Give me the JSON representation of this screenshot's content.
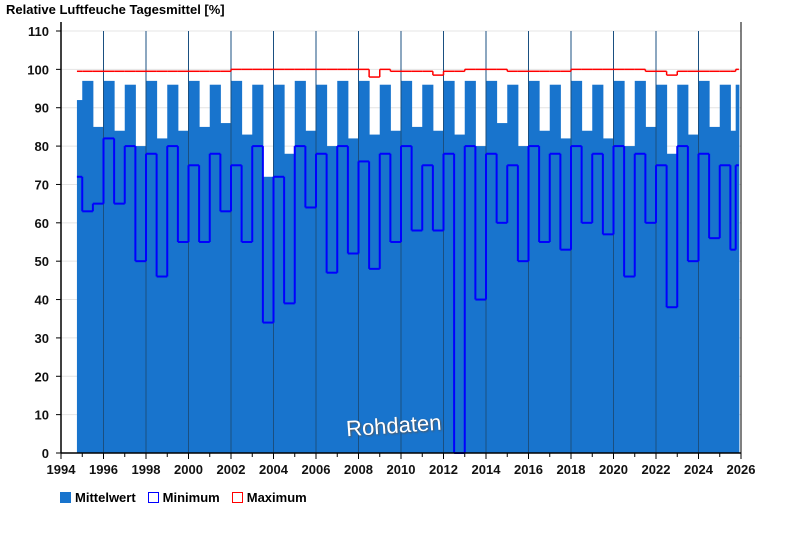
{
  "chart_data": {
    "type": "area",
    "title": "Relative Luftfeuche Tagesmittel [%]",
    "xlabel": "",
    "ylabel": "",
    "xlim": [
      1994,
      2026
    ],
    "ylim": [
      0,
      110
    ],
    "x_ticks": [
      "1994",
      "1996",
      "1998",
      "2000",
      "2002",
      "2004",
      "2006",
      "2008",
      "2010",
      "2012",
      "2014",
      "2016",
      "2018",
      "2020",
      "2022",
      "2024",
      "2026"
    ],
    "y_ticks": [
      "0",
      "10",
      "20",
      "30",
      "40",
      "50",
      "60",
      "70",
      "80",
      "90",
      "100",
      "110"
    ],
    "grid": true,
    "legend_position": "bottom-left",
    "x": [
      1994.75,
      1995.0,
      1995.5,
      1996.0,
      1996.5,
      1997.0,
      1997.5,
      1998.0,
      1998.5,
      1999.0,
      1999.5,
      2000.0,
      2000.5,
      2001.0,
      2001.5,
      2002.0,
      2002.5,
      2003.0,
      2003.5,
      2004.0,
      2004.5,
      2005.0,
      2005.5,
      2006.0,
      2006.5,
      2007.0,
      2007.5,
      2008.0,
      2008.5,
      2009.0,
      2009.5,
      2010.0,
      2010.5,
      2011.0,
      2011.5,
      2012.0,
      2012.5,
      2013.0,
      2013.5,
      2014.0,
      2014.5,
      2015.0,
      2015.5,
      2016.0,
      2016.5,
      2017.0,
      2017.5,
      2018.0,
      2018.5,
      2019.0,
      2019.5,
      2020.0,
      2020.5,
      2021.0,
      2021.5,
      2022.0,
      2022.5,
      2023.0,
      2023.5,
      2024.0,
      2024.5,
      2025.0,
      2025.5,
      2025.75
    ],
    "series": [
      {
        "name": "Mittelwert",
        "color": "#1874cd",
        "values": [
          92,
          97,
          85,
          97,
          84,
          96,
          80,
          97,
          82,
          96,
          84,
          97,
          85,
          96,
          86,
          97,
          83,
          96,
          72,
          96,
          78,
          97,
          84,
          96,
          80,
          97,
          82,
          97,
          83,
          96,
          84,
          97,
          85,
          96,
          84,
          97,
          83,
          97,
          80,
          97,
          86,
          96,
          80,
          97,
          84,
          96,
          82,
          97,
          84,
          96,
          82,
          97,
          80,
          97,
          85,
          96,
          78,
          96,
          83,
          97,
          85,
          96,
          84,
          96
        ]
      },
      {
        "name": "Minimum",
        "color": "#0000ff",
        "values": [
          72,
          63,
          65,
          82,
          65,
          80,
          50,
          78,
          46,
          80,
          55,
          75,
          55,
          78,
          63,
          75,
          55,
          80,
          34,
          72,
          39,
          80,
          64,
          78,
          47,
          80,
          52,
          76,
          48,
          78,
          55,
          80,
          58,
          75,
          58,
          78,
          0,
          80,
          40,
          78,
          60,
          75,
          50,
          80,
          55,
          78,
          53,
          80,
          60,
          78,
          57,
          80,
          46,
          78,
          60,
          75,
          38,
          80,
          50,
          78,
          56,
          75,
          53,
          75
        ]
      },
      {
        "name": "Maximum",
        "color": "#ff0000",
        "values": [
          99.5,
          99.5,
          99.5,
          99.5,
          99.5,
          99.5,
          99.5,
          99.5,
          99.5,
          99.5,
          99.5,
          99.5,
          99.5,
          99.5,
          99.5,
          100,
          100,
          100,
          100,
          100,
          100,
          100,
          100,
          100,
          100,
          100,
          100,
          100,
          98,
          100,
          99.5,
          99.5,
          99.5,
          99.5,
          98.5,
          99.5,
          99.5,
          100,
          100,
          100,
          100,
          99.5,
          99.5,
          99.5,
          99.5,
          99.5,
          99.5,
          100,
          100,
          100,
          100,
          100,
          100,
          100,
          99.5,
          99.5,
          98.5,
          99.5,
          99.5,
          99.5,
          99.5,
          99.5,
          99.5,
          100
        ]
      }
    ],
    "annotations": [
      "Rohdaten"
    ]
  },
  "legend": {
    "mean": "Mittelwert",
    "min": "Minimum",
    "max": "Maximum"
  }
}
